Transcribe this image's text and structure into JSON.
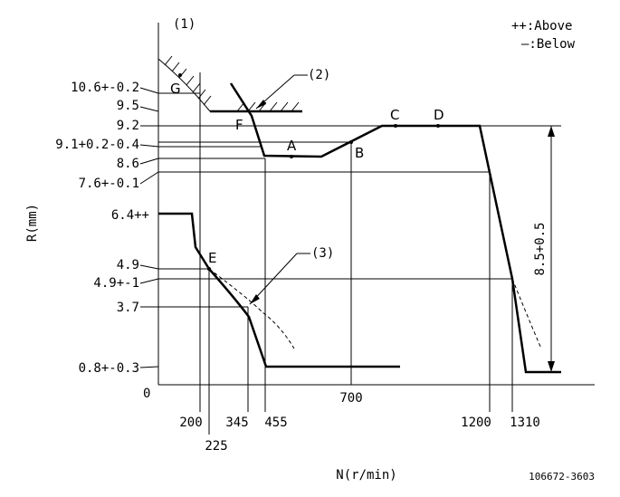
{
  "diagram": {
    "header_label": "(1)",
    "legend": {
      "above": "++:Above",
      "below": "—:Below"
    },
    "y_axis_title": "R(mm)",
    "x_axis_title": "N(r/min)",
    "origin_label": "0",
    "drawing_number": "106672-3603",
    "callouts": {
      "c2": "(2)",
      "c3": "(3)"
    },
    "span_label": "8.5+0.5",
    "y_labels": [
      "10.6+-0.2",
      "9.5",
      "9.2",
      "9.1+0.2-0.4",
      "8.6",
      "7.6+-0.1",
      "6.4++",
      "4.9",
      "4.9+-1",
      "3.7",
      "0.8+-0.3"
    ],
    "x_labels": [
      "200",
      "225",
      "345",
      "455",
      "700",
      "1200",
      "1310"
    ],
    "points": [
      "G",
      "F",
      "A",
      "B",
      "C",
      "D",
      "E"
    ]
  }
}
